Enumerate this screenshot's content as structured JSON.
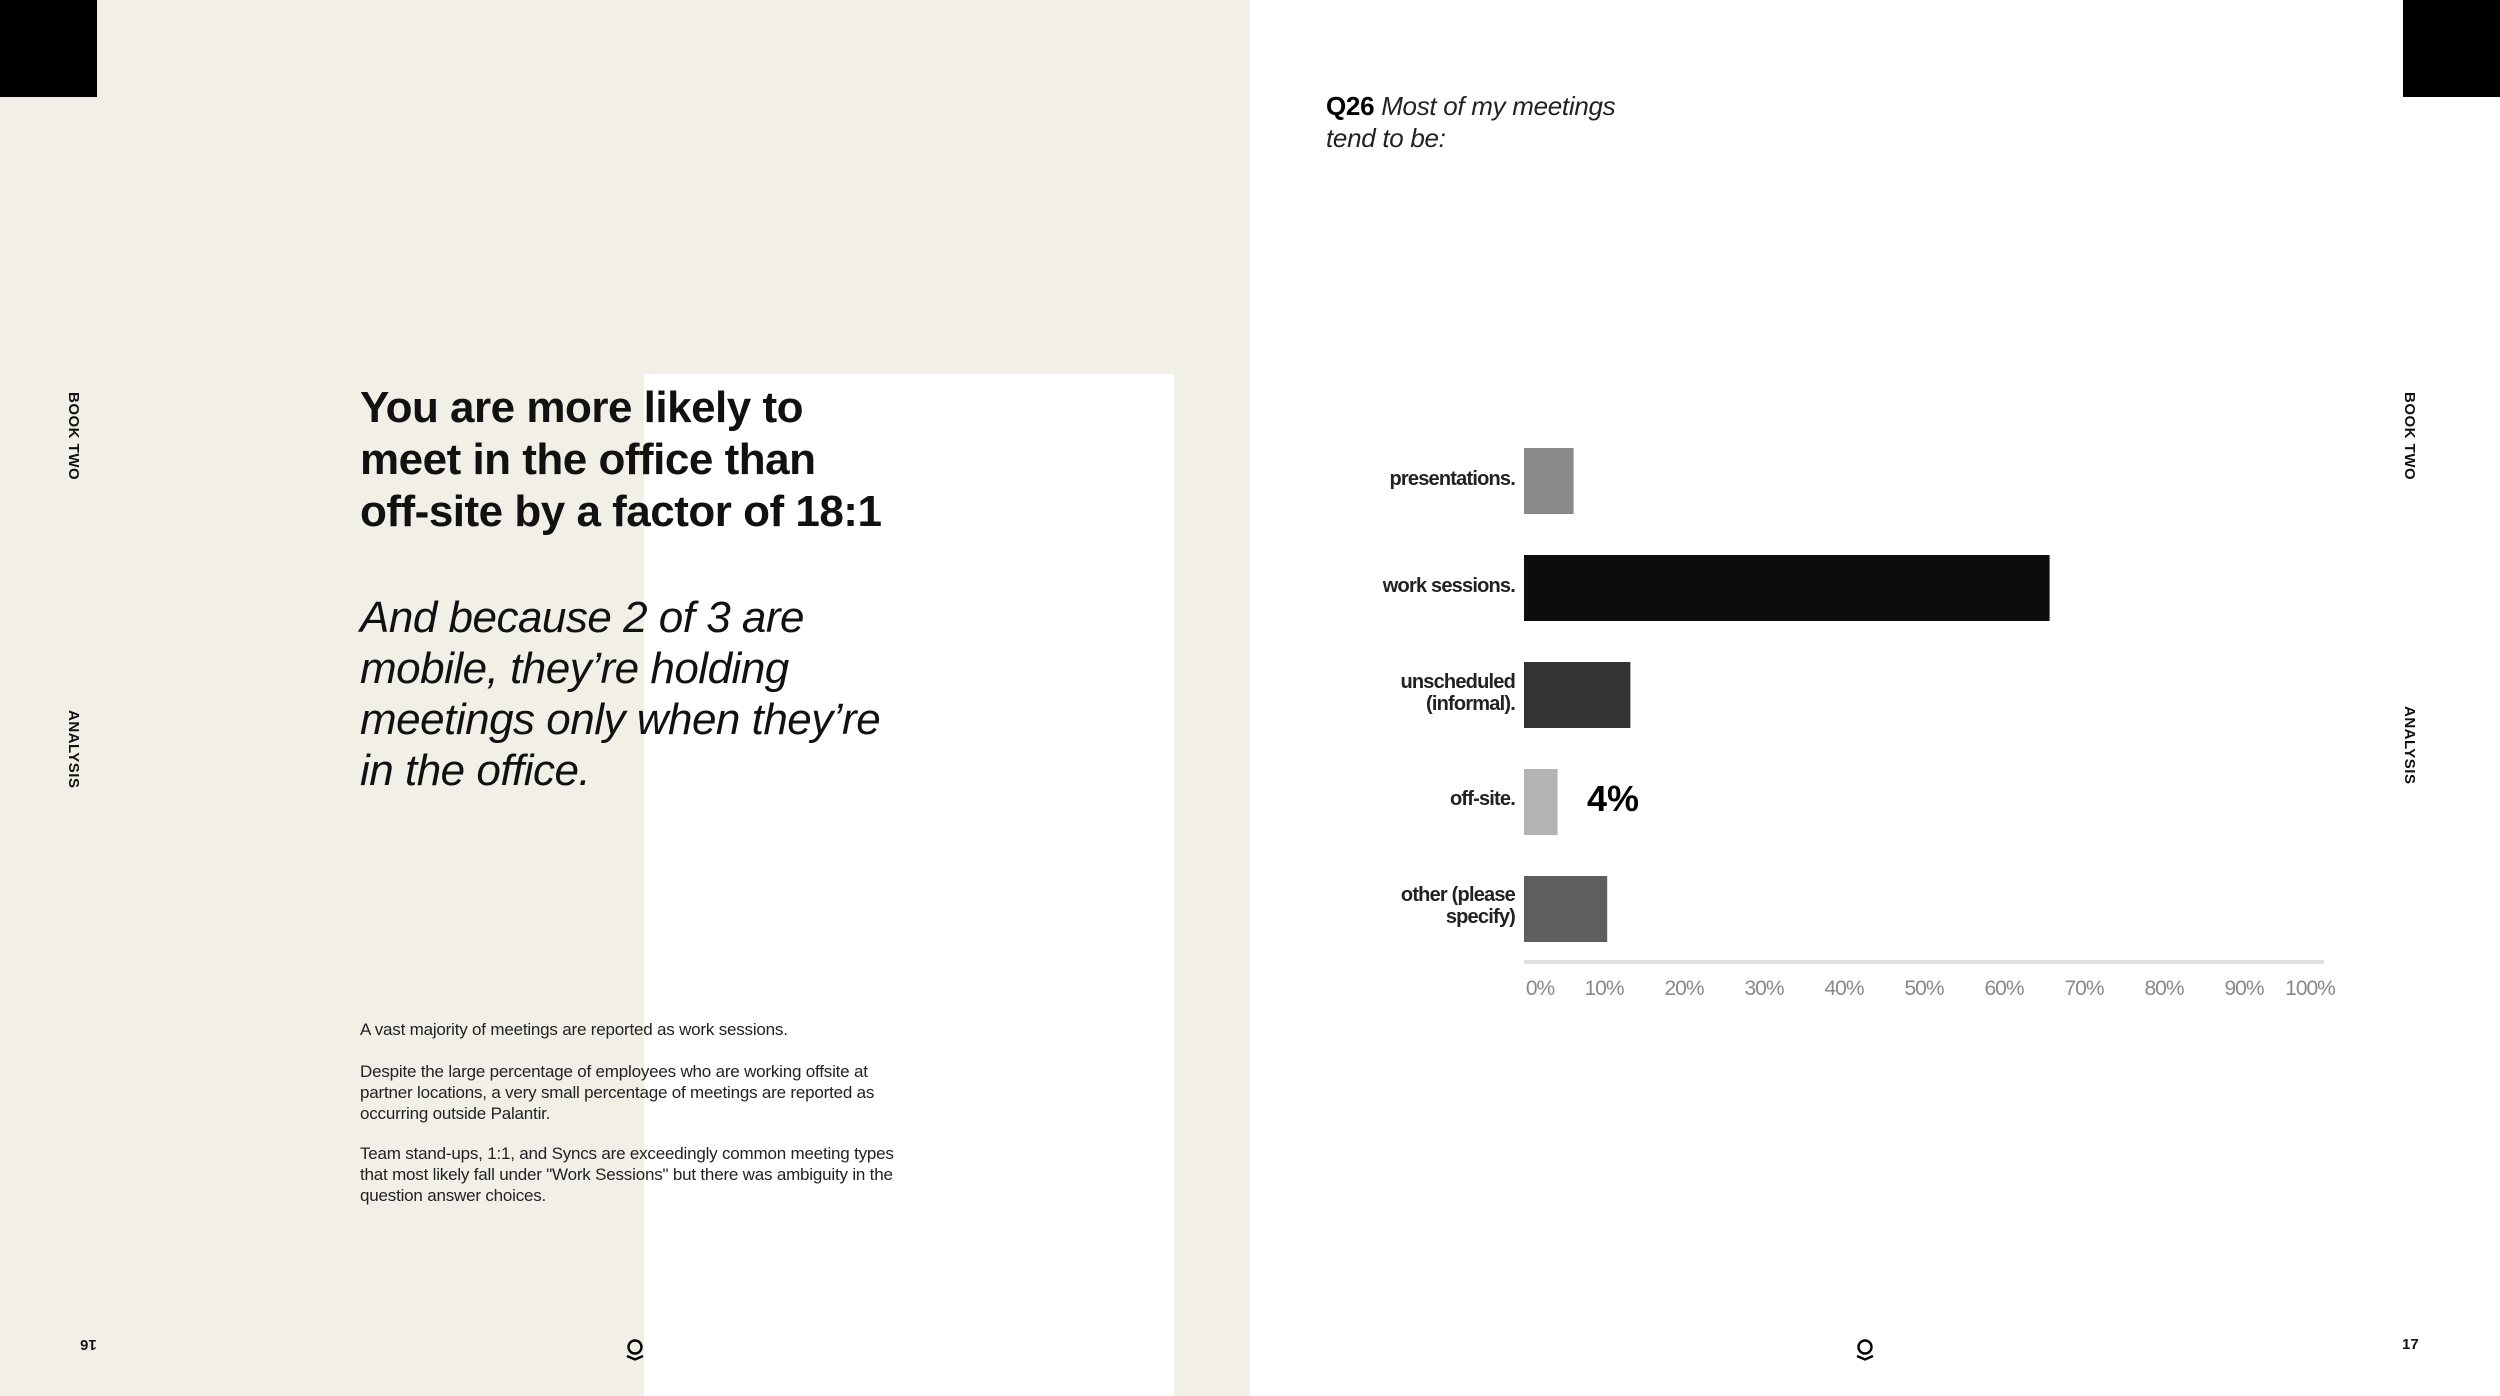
{
  "left_page": {
    "side_label_top": "BOOK TWO",
    "side_label_mid": "ANALYSIS",
    "heading_lines": [
      "You are more likely to",
      "meet in the office than",
      "off-site by a factor of 18:1"
    ],
    "subheading_lines": [
      "And because 2 of 3 are",
      "mobile, they’re holding",
      "meetings only when they’re",
      "in the office."
    ],
    "paragraphs": [
      "A vast majority of meetings are reported as work sessions.",
      "Despite the large percentage of employees who are working offsite at partner locations, a very small percentage of meetings are reported as occurring outside Palantir.",
      "Team stand-ups, 1:1, and Syncs are exceedingly common meeting types that most likely fall under \"Work Sessions\" but there was ambiguity in the question answer choices."
    ],
    "page_number": "16"
  },
  "right_page": {
    "question_number": "Q26",
    "question_text": "Most of my meetings tend to be:",
    "side_label_top": "BOOK TWO",
    "side_label_mid": "ANALYSIS",
    "page_number": "17",
    "data_label": "4%"
  },
  "icons": {
    "logo": "palantir-logo-icon"
  },
  "colors": {
    "left_bg": "#f2efe7",
    "bar_colors": [
      "#8a8a8a",
      "#0d0d0d",
      "#333333",
      "#b3b3b3",
      "#5e5e5e"
    ]
  },
  "chart_data": {
    "type": "bar",
    "orientation": "horizontal",
    "title": "Q26 Most of my meetings tend to be:",
    "categories": [
      "presentations.",
      "work sessions.",
      "unscheduled (informal).",
      "off-site.",
      "other (please specify)"
    ],
    "category_label_lines": [
      [
        "presentations."
      ],
      [
        "work sessions."
      ],
      [
        "unscheduled",
        "(informal)."
      ],
      [
        "off-site."
      ],
      [
        "other (please",
        "specify)"
      ]
    ],
    "values": [
      6.2,
      65.7,
      13.3,
      4.2,
      10.4
    ],
    "xlim": [
      0,
      100
    ],
    "xticks": [
      0,
      10,
      20,
      30,
      40,
      50,
      60,
      70,
      80,
      90,
      100
    ],
    "xtick_labels": [
      "0%",
      "10%",
      "20%",
      "30%",
      "40%",
      "50%",
      "60%",
      "70%",
      "80%",
      "90%",
      "100%"
    ],
    "annotations": [
      {
        "category": "off-site.",
        "text": "4%"
      }
    ],
    "grid": false,
    "xlabel": "",
    "ylabel": ""
  }
}
